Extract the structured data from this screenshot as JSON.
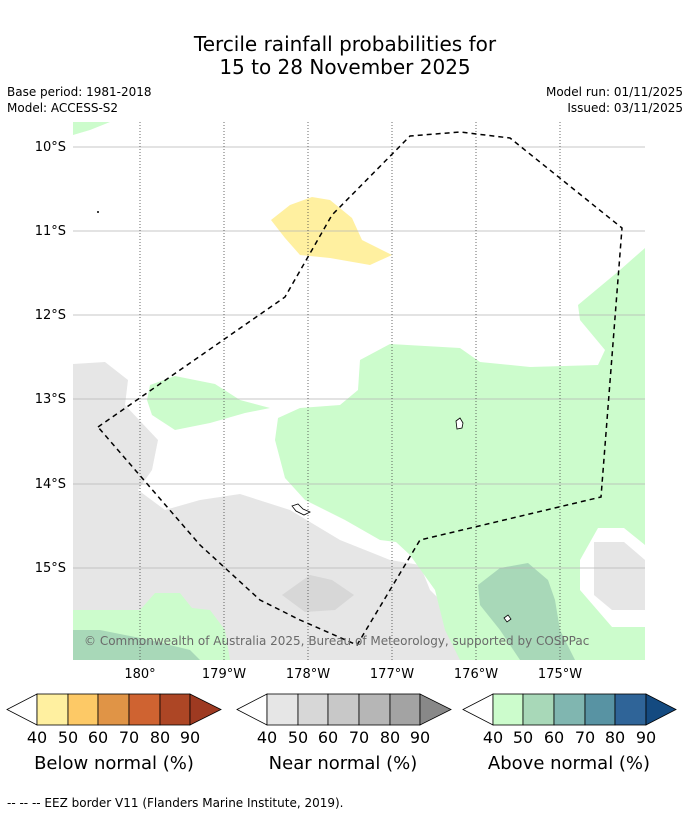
{
  "title_line1": "Tercile rainfall probabilities for",
  "title_line2": "15 to 28 November 2025",
  "base_period": "Base period: 1981-2018",
  "model": "Model: ACCESS-S2",
  "model_run": "Model run: 01/11/2025",
  "issued": "Issued: 03/11/2025",
  "map": {
    "lat_labels": [
      "10°S",
      "11°S",
      "12°S",
      "13°S",
      "14°S",
      "15°S"
    ],
    "lon_labels": [
      "180°",
      "179°W",
      "178°W",
      "177°W",
      "176°W",
      "175°W"
    ],
    "copyright": "© Commonwealth of Australia 2025, Bureau of Meteorology, supported by COSPPac"
  },
  "colorbars": [
    {
      "label": "Below normal (%)",
      "ticks": [
        "40",
        "50",
        "60",
        "70",
        "80",
        "90"
      ],
      "colors": [
        "#fff0a0",
        "#fdc966",
        "#e09446",
        "#cf6331",
        "#ad4625",
        "#9e3a21"
      ]
    },
    {
      "label": "Near normal (%)",
      "ticks": [
        "40",
        "50",
        "60",
        "70",
        "80",
        "90"
      ],
      "colors": [
        "#e6e6e6",
        "#d7d7d7",
        "#c8c8c8",
        "#b6b6b6",
        "#a3a3a3",
        "#888888"
      ]
    },
    {
      "label": "Above normal (%)",
      "ticks": [
        "40",
        "50",
        "60",
        "70",
        "80",
        "90"
      ],
      "colors": [
        "#ccfccc",
        "#a8d8b8",
        "#80b6b0",
        "#5893a3",
        "#2f6498",
        "#144a80"
      ]
    }
  ],
  "footnote": "--  --  -- EEZ border V11 (Flanders Marine Institute, 2019)."
}
